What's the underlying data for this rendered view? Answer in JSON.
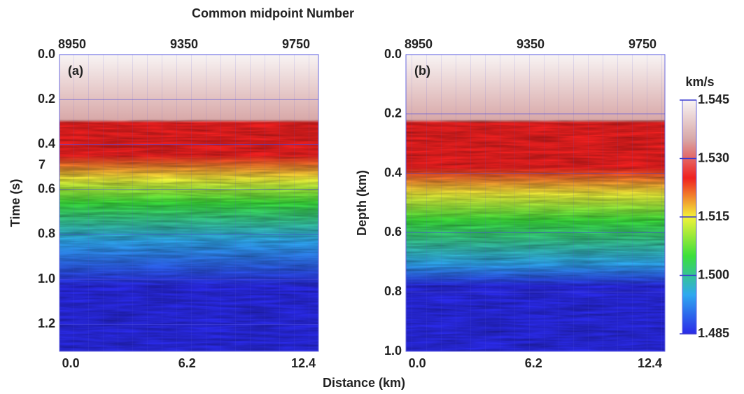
{
  "title": "Common midpoint Number",
  "xlabel": "Distance (km)",
  "annotations": [
    "7"
  ],
  "chart_data": [
    {
      "type": "heatmap",
      "panel_label": "(a)",
      "ylabel": "Time (s)",
      "xlim": [
        -0.6,
        13.2
      ],
      "xticks": [
        {
          "value": 0,
          "label": "0.0"
        },
        6.2,
        12.4
      ],
      "x2lim": [
        8905,
        9830
      ],
      "x2ticks": [
        8950,
        9350,
        9750
      ],
      "ylim": [
        0,
        1.32
      ],
      "yticks": [
        {
          "value": 0,
          "label": "0.0"
        },
        0.2,
        0.4,
        0.6,
        0.8,
        {
          "value": 1,
          "label": "1.0"
        },
        1.2
      ],
      "grid": true
    },
    {
      "type": "heatmap",
      "panel_label": "(b)",
      "ylabel": "Depth (km)",
      "xlim": [
        -0.6,
        13.2
      ],
      "xticks": [
        {
          "value": 0,
          "label": "0.0"
        },
        6.2,
        12.4
      ],
      "x2lim": [
        8905,
        9830
      ],
      "x2ticks": [
        8950,
        9350,
        9750
      ],
      "ylim": [
        0,
        1
      ],
      "yticks": [
        {
          "value": 0,
          "label": "0.0"
        },
        0.2,
        0.4,
        0.6,
        0.8,
        {
          "value": 1,
          "label": "1.0"
        }
      ],
      "grid": true
    },
    {
      "type": "colorbar",
      "label": "km/s",
      "lim": [
        1.485,
        1.545
      ],
      "ticks": [
        1.485,
        {
          "value": 1.5,
          "label": "1.500"
        },
        1.515,
        {
          "value": 1.53,
          "label": "1.530"
        },
        1.545
      ],
      "colors": [
        "#2a2ae8",
        "#2fa8f0",
        "#3be03b",
        "#f2f23a",
        "#f02020",
        "#d8a8a8",
        "#f8f4f4"
      ]
    }
  ]
}
